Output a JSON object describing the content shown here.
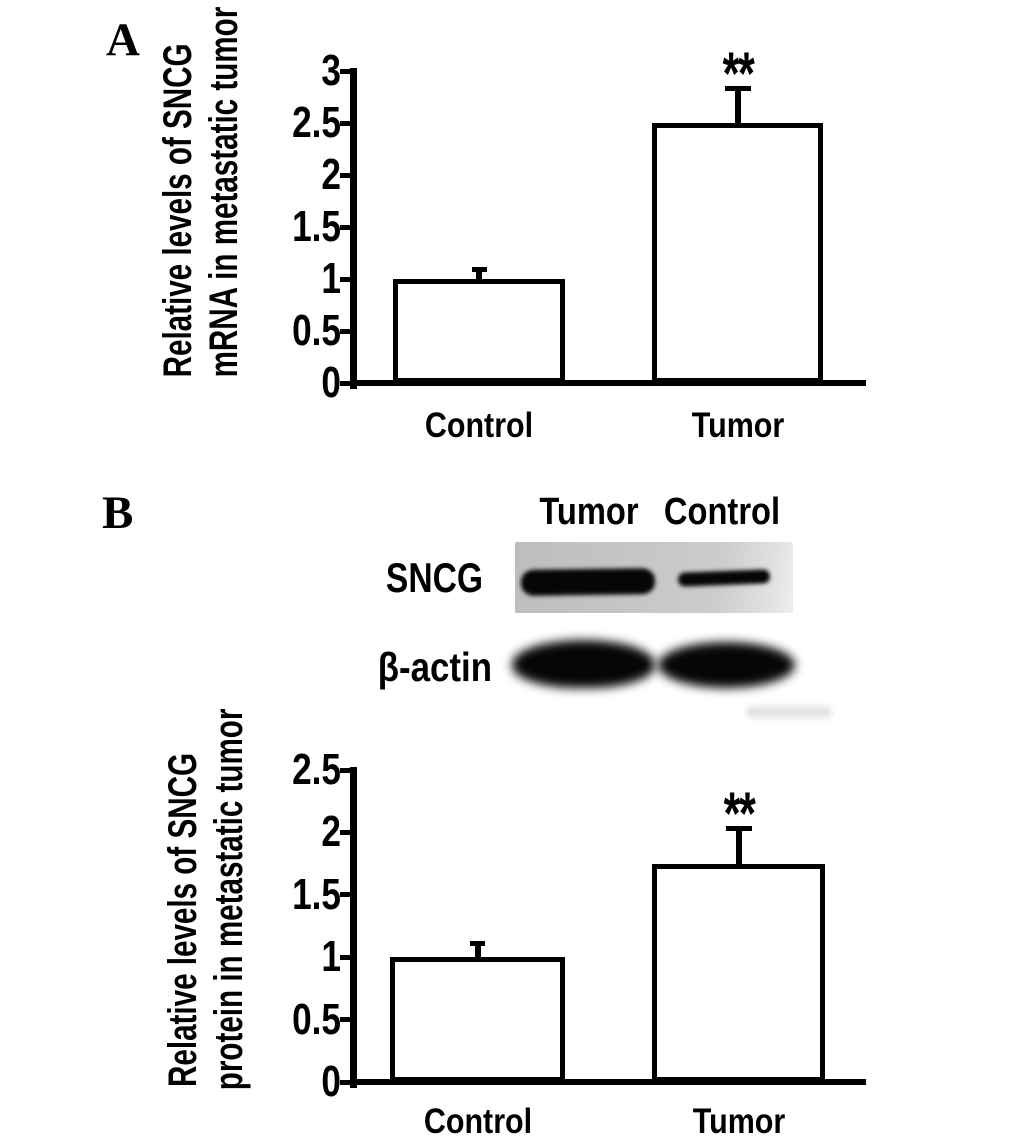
{
  "figure": {
    "panel_a_letter": "A",
    "panel_b_letter": "B",
    "background_color": "#ffffff",
    "ink_color": "#000000"
  },
  "blot": {
    "column_labels": [
      "Tumor",
      "Control"
    ],
    "row_labels": [
      "SNCG",
      "β-actin"
    ],
    "bands": [
      {
        "row": "SNCG",
        "lane": "Tumor",
        "intensity": "strong"
      },
      {
        "row": "SNCG",
        "lane": "Control",
        "intensity": "moderate"
      },
      {
        "row": "β-actin",
        "lane": "Tumor",
        "intensity": "strong"
      },
      {
        "row": "β-actin",
        "lane": "Control",
        "intensity": "strong"
      }
    ]
  },
  "chart_data": [
    {
      "id": "sncg-mrna",
      "type": "bar",
      "panel": "A",
      "title": "",
      "ylabel": "Relative levels of SNCG mRNA in metastatic tumor",
      "ylabel_lines": [
        "Relative levels of SNCG",
        "mRNA in metastatic tumor"
      ],
      "xlabel": "",
      "categories": [
        "Control",
        "Tumor"
      ],
      "values": [
        1.0,
        2.5
      ],
      "errors_plus": [
        0.08,
        0.32
      ],
      "significance": [
        "",
        "**"
      ],
      "yticks": [
        0,
        0.5,
        1,
        1.5,
        2,
        2.5,
        3
      ],
      "ytick_labels": [
        "0",
        "0.5",
        "1",
        "1.5",
        "2",
        "2.5",
        "3"
      ],
      "ylim": [
        0,
        3
      ],
      "grid": false,
      "legend": "none",
      "bar_fill": "#ffffff",
      "bar_border": "#000000"
    },
    {
      "id": "sncg-protein",
      "type": "bar",
      "panel": "B",
      "title": "",
      "ylabel": "Relative levels of SNCG protein in metastatic tumor",
      "ylabel_lines": [
        "Relative levels of SNCG",
        "protein in metastatic tumor"
      ],
      "xlabel": "",
      "categories": [
        "Control",
        "Tumor"
      ],
      "values": [
        1.0,
        1.75
      ],
      "errors_plus": [
        0.1,
        0.27
      ],
      "significance": [
        "",
        "**"
      ],
      "yticks": [
        0,
        0.5,
        1,
        1.5,
        2,
        2.5
      ],
      "ytick_labels": [
        "0",
        "0.5",
        "1",
        "1.5",
        "2",
        "2.5"
      ],
      "ylim": [
        0,
        2.5
      ],
      "grid": false,
      "legend": "none",
      "bar_fill": "#ffffff",
      "bar_border": "#000000"
    }
  ]
}
